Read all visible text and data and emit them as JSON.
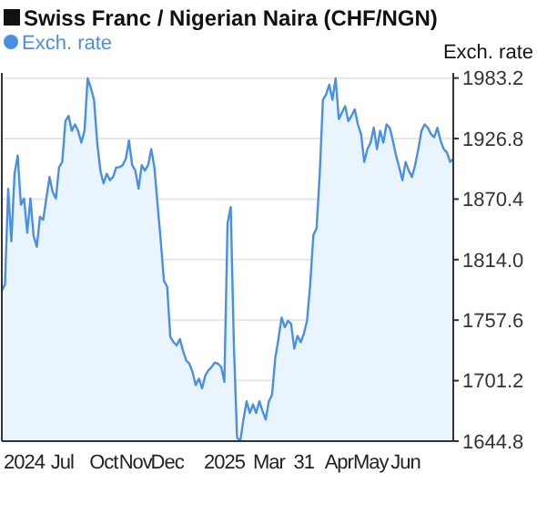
{
  "chart_data": {
    "type": "area",
    "title": "Swiss Franc / Nigerian Naira (CHF/NGN)",
    "ylabel": "Exch. rate",
    "categories": [
      null,
      null,
      null,
      null,
      null,
      null,
      null,
      "2024",
      null,
      null,
      null,
      null,
      null,
      null,
      null,
      null,
      null,
      null,
      null,
      "Jul",
      null,
      null,
      null,
      null,
      null,
      null,
      null,
      null,
      null,
      null,
      null,
      null,
      "Oct",
      null,
      null,
      null,
      null,
      null,
      null,
      null,
      null,
      null,
      "Nov",
      null,
      null,
      null,
      null,
      null,
      null,
      null,
      null,
      null,
      "Dec",
      null,
      null,
      null,
      null,
      null,
      null,
      null,
      null,
      null,
      null,
      null,
      null,
      null,
      null,
      null,
      null,
      null,
      "2025",
      null,
      null,
      null,
      null,
      null,
      null,
      null,
      null,
      null,
      null,
      null,
      null,
      null,
      "Mar",
      null,
      null,
      null,
      null,
      null,
      null,
      null,
      null,
      null,
      null,
      "31",
      null,
      null,
      null,
      null,
      null,
      null,
      null,
      null,
      null,
      null,
      "Apr",
      null,
      null,
      null,
      null,
      null,
      null,
      null,
      null,
      null,
      "May",
      null,
      null,
      null,
      null,
      null,
      null,
      null,
      null,
      null,
      null,
      "Jun",
      null,
      null,
      null,
      null,
      null,
      null,
      null,
      null,
      null,
      null,
      null,
      null,
      null,
      null,
      null
    ],
    "series": [
      {
        "name": "Exch. rate",
        "color": "#4a90e2",
        "values": [
          1785,
          1791,
          1880,
          1831,
          1894,
          1911,
          1865,
          1871,
          1839,
          1871,
          1836,
          1826,
          1854,
          1851,
          1871,
          1891,
          1877,
          1871,
          1900,
          1905,
          1943,
          1948,
          1934,
          1940,
          1934,
          1923,
          1934,
          1983,
          1974,
          1963,
          1923,
          1897,
          1885,
          1894,
          1888,
          1891,
          1900,
          1900,
          1902,
          1908,
          1925,
          1902,
          1897,
          1880,
          1902,
          1897,
          1902,
          1917,
          1900,
          1865,
          1831,
          1794,
          1789,
          1742,
          1737,
          1734,
          1740,
          1729,
          1720,
          1717,
          1709,
          1697,
          1703,
          1694,
          1706,
          1711,
          1714,
          1718,
          1717,
          1714,
          1700,
          1848,
          1863,
          1734,
          1648,
          1645,
          1665,
          1682,
          1671,
          1679,
          1671,
          1682,
          1673,
          1665,
          1682,
          1688,
          1722,
          1740,
          1760,
          1751,
          1757,
          1754,
          1731,
          1743,
          1737,
          1745,
          1757,
          1791,
          1837,
          1843,
          1894,
          1963,
          1968,
          1977,
          1963,
          1983,
          1945,
          1951,
          1957,
          1943,
          1948,
          1954,
          1940,
          1931,
          1905,
          1917,
          1923,
          1937,
          1917,
          1934,
          1923,
          1940,
          1937,
          1925,
          1911,
          1900,
          1888,
          1905,
          1897,
          1891,
          1902,
          1917,
          1934,
          1940,
          1937,
          1931,
          1928,
          1937,
          1925,
          1917,
          1914,
          1905,
          1908
        ]
      }
    ],
    "ylim": [
      1644.8,
      1988
    ],
    "yticks": [
      {
        "value": 1644.8,
        "label": "1644.8"
      },
      {
        "value": 1701.2,
        "label": "1701.2"
      },
      {
        "value": 1757.6,
        "label": "1757.6"
      },
      {
        "value": 1814.0,
        "label": "1814.0"
      },
      {
        "value": 1870.4,
        "label": "1870.4"
      },
      {
        "value": 1926.8,
        "label": "1926.8"
      },
      {
        "value": 1983.2,
        "label": "1983.2"
      }
    ],
    "grid": "y",
    "legend": "top left"
  }
}
